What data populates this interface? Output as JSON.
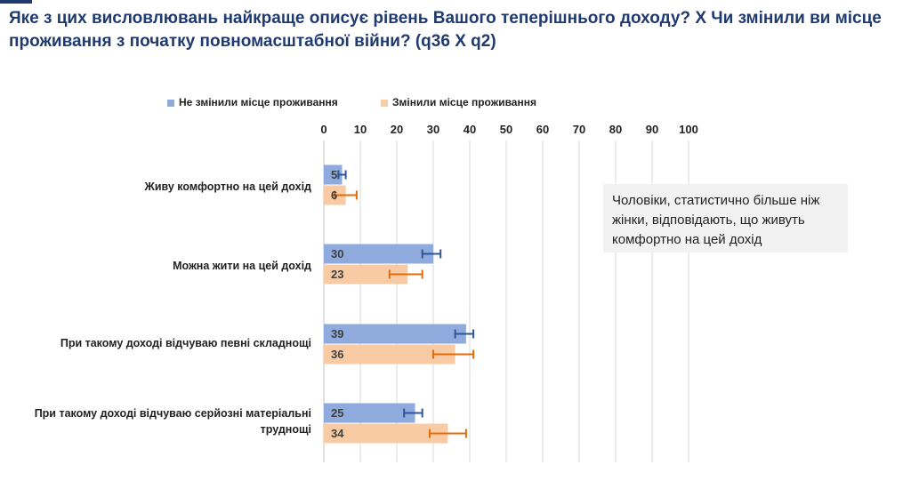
{
  "title": "Яке з цих висловлювань найкраще описує рівень Вашого теперішнього доходу? Х Чи змінили ви місце проживання з початку повномасштабної війни? (q36 X q2)",
  "note": "Чоловіки, статистично більше ніж жінки, відповідають, що живуть комфортно на цей дохід",
  "colors": {
    "series1": "#8faadc",
    "series2": "#f8cba4",
    "err1": "#2e5597",
    "err2": "#e36c0a",
    "title": "#1f3a6e"
  },
  "chart_data": {
    "type": "bar",
    "orientation": "horizontal",
    "categories": [
      "Живу комфортно на цей дохід",
      "Можна жити на цей дохід",
      "При такому доході відчуваю певні складнощі",
      "При такому доході відчуваю серйозні матеріальні труднощі"
    ],
    "series": [
      {
        "name": "Не змінили місце проживання",
        "values": [
          5,
          30,
          39,
          25
        ],
        "error": [
          [
            4,
            6
          ],
          [
            27,
            32
          ],
          [
            36,
            41
          ],
          [
            22,
            27
          ]
        ]
      },
      {
        "name": "Змінили місце проживання",
        "values": [
          6,
          23,
          36,
          34
        ],
        "error": [
          [
            3,
            9
          ],
          [
            18,
            27
          ],
          [
            30,
            41
          ],
          [
            29,
            39
          ]
        ]
      }
    ],
    "xlim": [
      0,
      100
    ],
    "xticks": [
      0,
      10,
      20,
      30,
      40,
      50,
      60,
      70,
      80,
      90,
      100
    ],
    "grid": true,
    "legend": "top",
    "axis_position": "top"
  }
}
